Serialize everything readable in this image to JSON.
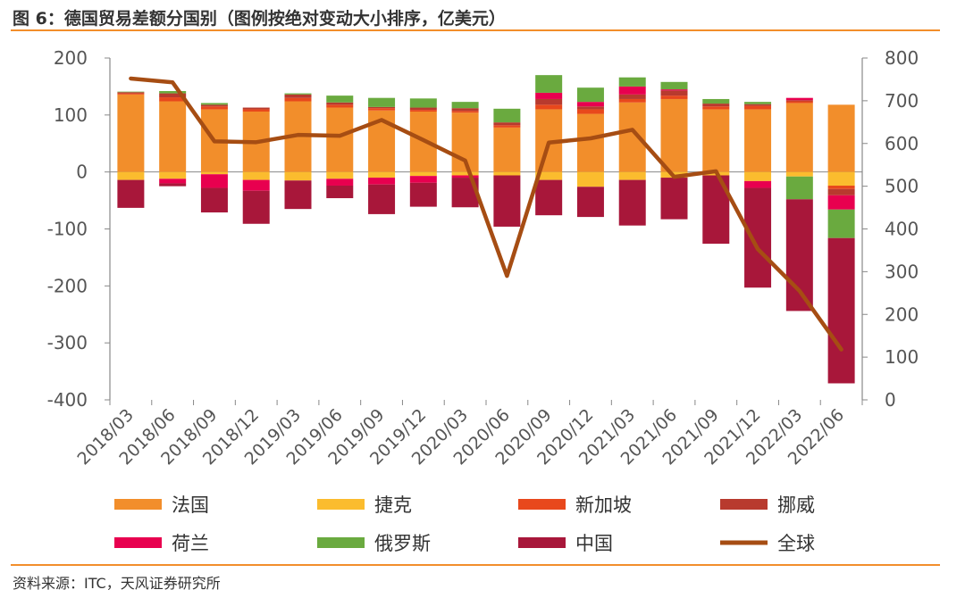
{
  "header": {
    "title": "图 6：德国贸易差额分国别（图例按绝对变动大小排序，亿美元）"
  },
  "footer": {
    "source": "资料来源：ITC，天风证券研究所"
  },
  "chart_data": {
    "type": "bar",
    "stacked": true,
    "title": "图 6：德国贸易差额分国别（图例按绝对变动大小排序，亿美元）",
    "categories": [
      "2018/03",
      "2018/06",
      "2018/09",
      "2018/12",
      "2019/03",
      "2019/06",
      "2019/09",
      "2019/12",
      "2020/03",
      "2020/06",
      "2020/09",
      "2020/12",
      "2021/03",
      "2021/06",
      "2021/09",
      "2021/12",
      "2022/03",
      "2022/06"
    ],
    "ylim": [
      -400,
      200
    ],
    "yticks": [
      200,
      100,
      0,
      -100,
      -200,
      -300,
      -400
    ],
    "y2lim": [
      0,
      800
    ],
    "y2ticks": [
      800,
      700,
      600,
      500,
      400,
      300,
      200,
      100,
      0
    ],
    "series": [
      {
        "name": "法国",
        "color": "#f28e2b",
        "axis": "left",
        "values": [
          136,
          124,
          110,
          106,
          124,
          113,
          108,
          106,
          104,
          78,
          110,
          102,
          122,
          128,
          110,
          110,
          121,
          118
        ]
      },
      {
        "name": "捷克",
        "color": "#fbbc2e",
        "axis": "left",
        "values": [
          -14,
          -12,
          -4,
          -14,
          -15,
          -12,
          -10,
          -7,
          -6,
          -6,
          -14,
          -26,
          -14,
          -10,
          -6,
          -16,
          -8,
          -24
        ]
      },
      {
        "name": "新加坡",
        "color": "#e8481c",
        "axis": "left",
        "values": [
          2,
          7,
          5,
          4,
          6,
          5,
          4,
          3,
          3,
          4,
          8,
          8,
          6,
          6,
          5,
          6,
          3,
          -6
        ]
      },
      {
        "name": "挪威",
        "color": "#b83a2e",
        "axis": "left",
        "values": [
          2,
          7,
          3,
          3,
          6,
          4,
          2,
          4,
          5,
          5,
          10,
          5,
          8,
          9,
          5,
          3,
          2,
          -11
        ]
      },
      {
        "name": "荷兰",
        "color": "#e8004f",
        "axis": "left",
        "values": [
          0,
          -8,
          -24,
          -19,
          0,
          -12,
          -12,
          -12,
          -4,
          0,
          11,
          8,
          14,
          2,
          0,
          -12,
          4,
          -25
        ]
      },
      {
        "name": "俄罗斯",
        "color": "#6aaa3f",
        "axis": "left",
        "values": [
          1,
          4,
          3,
          0,
          2,
          12,
          16,
          16,
          11,
          24,
          31,
          25,
          16,
          13,
          8,
          4,
          -40,
          -50
        ]
      },
      {
        "name": "中国",
        "color": "#a8173a",
        "axis": "left",
        "values": [
          -49,
          -5,
          -43,
          -58,
          -50,
          -22,
          -52,
          -42,
          -52,
          -90,
          -62,
          -53,
          -80,
          -73,
          -120,
          -175,
          -196,
          -255
        ]
      },
      {
        "name": "全球",
        "color": "#a64d13",
        "type": "line",
        "axis": "right",
        "values": [
          752,
          743,
          605,
          603,
          620,
          618,
          655,
          608,
          560,
          290,
          602,
          612,
          632,
          522,
          535,
          353,
          255,
          118
        ]
      }
    ]
  }
}
